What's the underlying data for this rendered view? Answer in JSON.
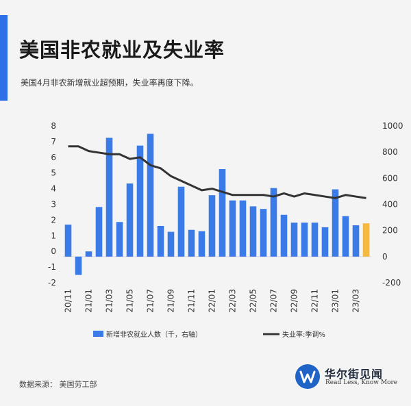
{
  "header": {
    "title": "美国非农就业及失业率",
    "subtitle": "美国4月非农新增就业超预期，失业率再度下降。"
  },
  "footer": {
    "source": "数据来源： 美国劳工部"
  },
  "brand": {
    "name": "华尔街见闻",
    "tagline": "Read Less, Know More"
  },
  "colors": {
    "accent": "#2f6fe8",
    "bar": "#3a7be8",
    "highlight_bar": "#f5b942",
    "line": "#333333"
  },
  "chart_data": {
    "type": "bar",
    "categories": [
      "20/11",
      "20/12",
      "21/01",
      "21/02",
      "21/03",
      "21/04",
      "21/05",
      "21/06",
      "21/07",
      "21/08",
      "21/09",
      "21/10",
      "21/11",
      "21/12",
      "22/01",
      "22/02",
      "22/03",
      "22/04",
      "22/05",
      "22/06",
      "22/07",
      "22/08",
      "22/09",
      "22/10",
      "22/11",
      "22/12",
      "23/01",
      "23/02",
      "23/03",
      "23/04"
    ],
    "x_tick_labels": [
      "20/11",
      "21/01",
      "21/03",
      "21/05",
      "21/07",
      "21/09",
      "21/11",
      "22/01",
      "22/03",
      "22/05",
      "22/07",
      "22/09",
      "22/11",
      "23/01",
      "23/03"
    ],
    "series": [
      {
        "name": "新增非农就业人数（千，右轴）",
        "type": "bar",
        "axis": "right",
        "values": [
          245,
          -140,
          40,
          380,
          910,
          265,
          560,
          850,
          940,
          235,
          190,
          535,
          205,
          195,
          470,
          670,
          430,
          430,
          385,
          365,
          525,
          320,
          260,
          260,
          260,
          225,
          515,
          310,
          240,
          255
        ],
        "highlight_index": 29
      },
      {
        "name": "失业率:季调%",
        "type": "line",
        "axis": "left",
        "values": [
          6.7,
          6.7,
          6.4,
          6.3,
          6.2,
          6.2,
          5.9,
          6.0,
          5.5,
          5.3,
          4.8,
          4.5,
          4.2,
          3.9,
          4.0,
          3.8,
          3.6,
          3.6,
          3.6,
          3.6,
          3.5,
          3.7,
          3.5,
          3.7,
          3.6,
          3.5,
          3.4,
          3.6,
          3.5,
          3.4
        ]
      }
    ],
    "y_left": {
      "ticks": [
        "8",
        "7",
        "6",
        "5",
        "4",
        "3",
        "2",
        "1",
        "0",
        "-1",
        "-2"
      ],
      "range": [
        -2,
        8
      ]
    },
    "y_right": {
      "ticks": [
        "1000",
        "800",
        "600",
        "400",
        "200",
        "0",
        "-200"
      ],
      "range": [
        -200,
        1000
      ]
    },
    "legend_placement": "bottom",
    "grid": false
  }
}
